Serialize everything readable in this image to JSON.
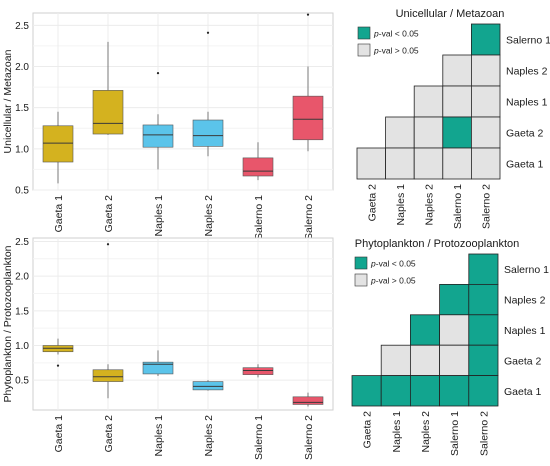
{
  "colors": {
    "gaeta": "#d4b21f",
    "naples": "#5bc4ea",
    "salerno": "#e8566b",
    "significant": "#12a58f",
    "not_significant": "#e3e3e3",
    "grid": "#ececec",
    "frame": "#cfcfcf"
  },
  "chart_data": [
    {
      "type": "box",
      "id": "boxplot_uni_meta",
      "ylabel": "Unicellular / Metazoan",
      "ylim": [
        0.5,
        2.65
      ],
      "yticks": [
        0.5,
        1.0,
        1.5,
        2.0,
        2.5
      ],
      "ytick_labels": [
        "0.5",
        "1.0",
        "1.5",
        "2.0",
        "2.5"
      ],
      "grid": true,
      "categories": [
        "Gaeta 1",
        "Gaeta 2",
        "Naples 1",
        "Naples 2",
        "Salerno 1",
        "Salerno 2"
      ],
      "groups": [
        "gaeta",
        "gaeta",
        "naples",
        "naples",
        "salerno",
        "salerno"
      ],
      "boxes": [
        {
          "whislo": 0.58,
          "q1": 0.84,
          "med": 1.07,
          "q3": 1.28,
          "whishi": 1.45,
          "fliers": []
        },
        {
          "whislo": 1.17,
          "q1": 1.18,
          "med": 1.31,
          "q3": 1.71,
          "whishi": 2.3,
          "fliers": []
        },
        {
          "whislo": 0.75,
          "q1": 1.02,
          "med": 1.17,
          "q3": 1.29,
          "whishi": 1.42,
          "fliers": [
            1.92
          ]
        },
        {
          "whislo": 0.91,
          "q1": 1.03,
          "med": 1.16,
          "q3": 1.35,
          "whishi": 1.45,
          "fliers": [
            2.41
          ]
        },
        {
          "whislo": 0.62,
          "q1": 0.67,
          "med": 0.73,
          "q3": 0.89,
          "whishi": 1.08,
          "fliers": []
        },
        {
          "whislo": 0.97,
          "q1": 1.11,
          "med": 1.36,
          "q3": 1.64,
          "whishi": 2.0,
          "fliers": [
            2.63
          ]
        }
      ]
    },
    {
      "type": "box",
      "id": "boxplot_phyto_proto",
      "ylabel": "Phytoplankton / Protozooplankton",
      "ylim": [
        0.07,
        2.55
      ],
      "yticks": [
        0.5,
        1.0,
        1.5,
        2.0,
        2.5
      ],
      "ytick_labels": [
        "0.5",
        "1.0",
        "1.5",
        "2.0",
        "2.5"
      ],
      "grid": true,
      "categories": [
        "Gaeta 1",
        "Gaeta 2",
        "Naples 1",
        "Naples 2",
        "Salerno 1",
        "Salerno 2"
      ],
      "groups": [
        "gaeta",
        "gaeta",
        "naples",
        "naples",
        "salerno",
        "salerno"
      ],
      "boxes": [
        {
          "whislo": 0.87,
          "q1": 0.91,
          "med": 0.96,
          "q3": 1.0,
          "whishi": 1.1,
          "fliers": [
            0.71
          ]
        },
        {
          "whislo": 0.24,
          "q1": 0.48,
          "med": 0.55,
          "q3": 0.65,
          "whishi": 0.73,
          "fliers": [
            2.46
          ]
        },
        {
          "whislo": 0.56,
          "q1": 0.59,
          "med": 0.73,
          "q3": 0.76,
          "whishi": 0.93,
          "fliers": []
        },
        {
          "whislo": 0.35,
          "q1": 0.36,
          "med": 0.41,
          "q3": 0.48,
          "whishi": 0.5,
          "fliers": []
        },
        {
          "whislo": 0.54,
          "q1": 0.58,
          "med": 0.64,
          "q3": 0.68,
          "whishi": 0.73,
          "fliers": []
        },
        {
          "whislo": 0.12,
          "q1": 0.15,
          "med": 0.18,
          "q3": 0.26,
          "whishi": 0.32,
          "fliers": []
        }
      ]
    },
    {
      "type": "heatmap",
      "id": "pval_uni_meta",
      "title": "Unicellular / Metazoan",
      "legend": [
        {
          "label_italic": "p",
          "label_rest": "-val < 0.05",
          "color_key": "significant"
        },
        {
          "label_italic": "p",
          "label_rest": "-val > 0.05",
          "color_key": "not_significant"
        }
      ],
      "row_labels": [
        "Salerno 1",
        "Naples 2",
        "Naples 1",
        "Gaeta 2",
        "Gaeta 1"
      ],
      "col_labels": [
        "Gaeta 2",
        "Naples 1",
        "Naples 2",
        "Salerno 1",
        "Salerno 2"
      ],
      "cells": [
        [
          null,
          null,
          null,
          null,
          1
        ],
        [
          null,
          null,
          null,
          0,
          0
        ],
        [
          null,
          null,
          0,
          0,
          0
        ],
        [
          null,
          0,
          0,
          1,
          0
        ],
        [
          0,
          0,
          0,
          0,
          0
        ]
      ]
    },
    {
      "type": "heatmap",
      "id": "pval_phyto_proto",
      "title": "Phytoplankton / Protozooplankton",
      "legend": [
        {
          "label_italic": "p",
          "label_rest": "-val < 0.05",
          "color_key": "significant"
        },
        {
          "label_italic": "p",
          "label_rest": "-val > 0.05",
          "color_key": "not_significant"
        }
      ],
      "row_labels": [
        "Salerno 1",
        "Naples 2",
        "Naples 1",
        "Gaeta 2",
        "Gaeta 1"
      ],
      "col_labels": [
        "Gaeta 2",
        "Naples 1",
        "Naples 2",
        "Salerno 1",
        "Salerno 2"
      ],
      "cells": [
        [
          null,
          null,
          null,
          null,
          1
        ],
        [
          null,
          null,
          null,
          1,
          1
        ],
        [
          null,
          null,
          1,
          0,
          1
        ],
        [
          null,
          0,
          0,
          0,
          1
        ],
        [
          1,
          1,
          1,
          1,
          1
        ]
      ]
    }
  ]
}
